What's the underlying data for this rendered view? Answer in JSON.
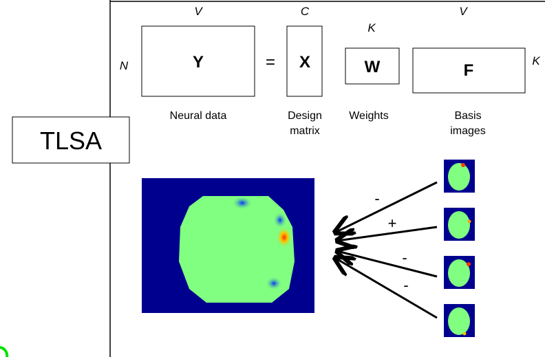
{
  "equation": {
    "rows_label": "N",
    "Y": {
      "dim": "V",
      "label": "Y"
    },
    "equals": "=",
    "X": {
      "dim": "C",
      "label": "X"
    },
    "W": {
      "dim": "K",
      "label": "W"
    },
    "F": {
      "dim": "V",
      "label": "F",
      "rows_label": "K"
    }
  },
  "captions": {
    "neural": "Neural data",
    "design": [
      "Design",
      "matrix"
    ],
    "weights": "Weights",
    "basis": [
      "Basis",
      "images"
    ]
  },
  "tag": "TLSA",
  "signs": [
    "-",
    "+",
    "-",
    "-"
  ]
}
